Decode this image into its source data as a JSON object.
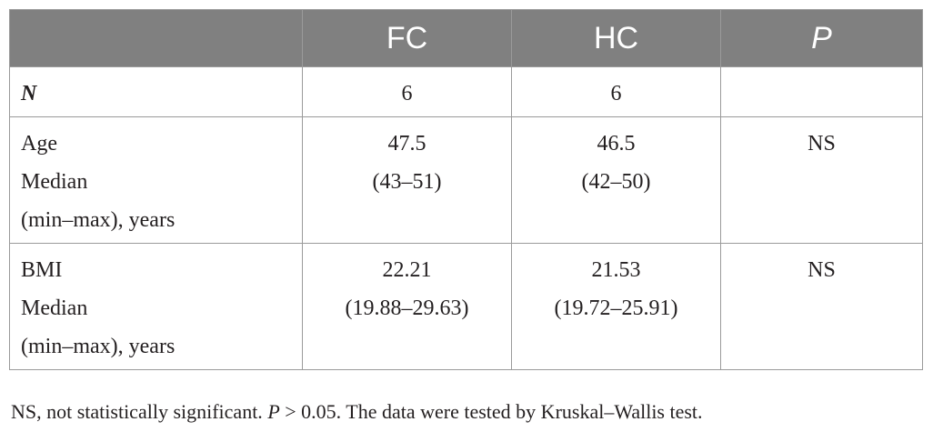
{
  "table": {
    "headers": {
      "blank": "",
      "fc": "FC",
      "hc": "HC",
      "p": "P"
    },
    "rows": [
      {
        "label_lines": [
          "N"
        ],
        "fc_lines": [
          "6"
        ],
        "hc_lines": [
          "6"
        ],
        "p": ""
      },
      {
        "label_lines": [
          "Age",
          "Median",
          "(min–max), years"
        ],
        "fc_lines": [
          "47.5",
          "(43–51)"
        ],
        "hc_lines": [
          "46.5",
          "(42–50)"
        ],
        "p": "NS"
      },
      {
        "label_lines": [
          "BMI",
          "Median",
          "(min–max), years"
        ],
        "fc_lines": [
          "22.21",
          "(19.88–29.63)"
        ],
        "hc_lines": [
          "21.53",
          "(19.72–25.91)"
        ],
        "p": "NS"
      }
    ]
  },
  "footnote": {
    "part1": "NS, not statistically significant. ",
    "p_symbol": "P",
    "part2": " > 0.05. The data were tested by Kruskal–Wallis test."
  }
}
